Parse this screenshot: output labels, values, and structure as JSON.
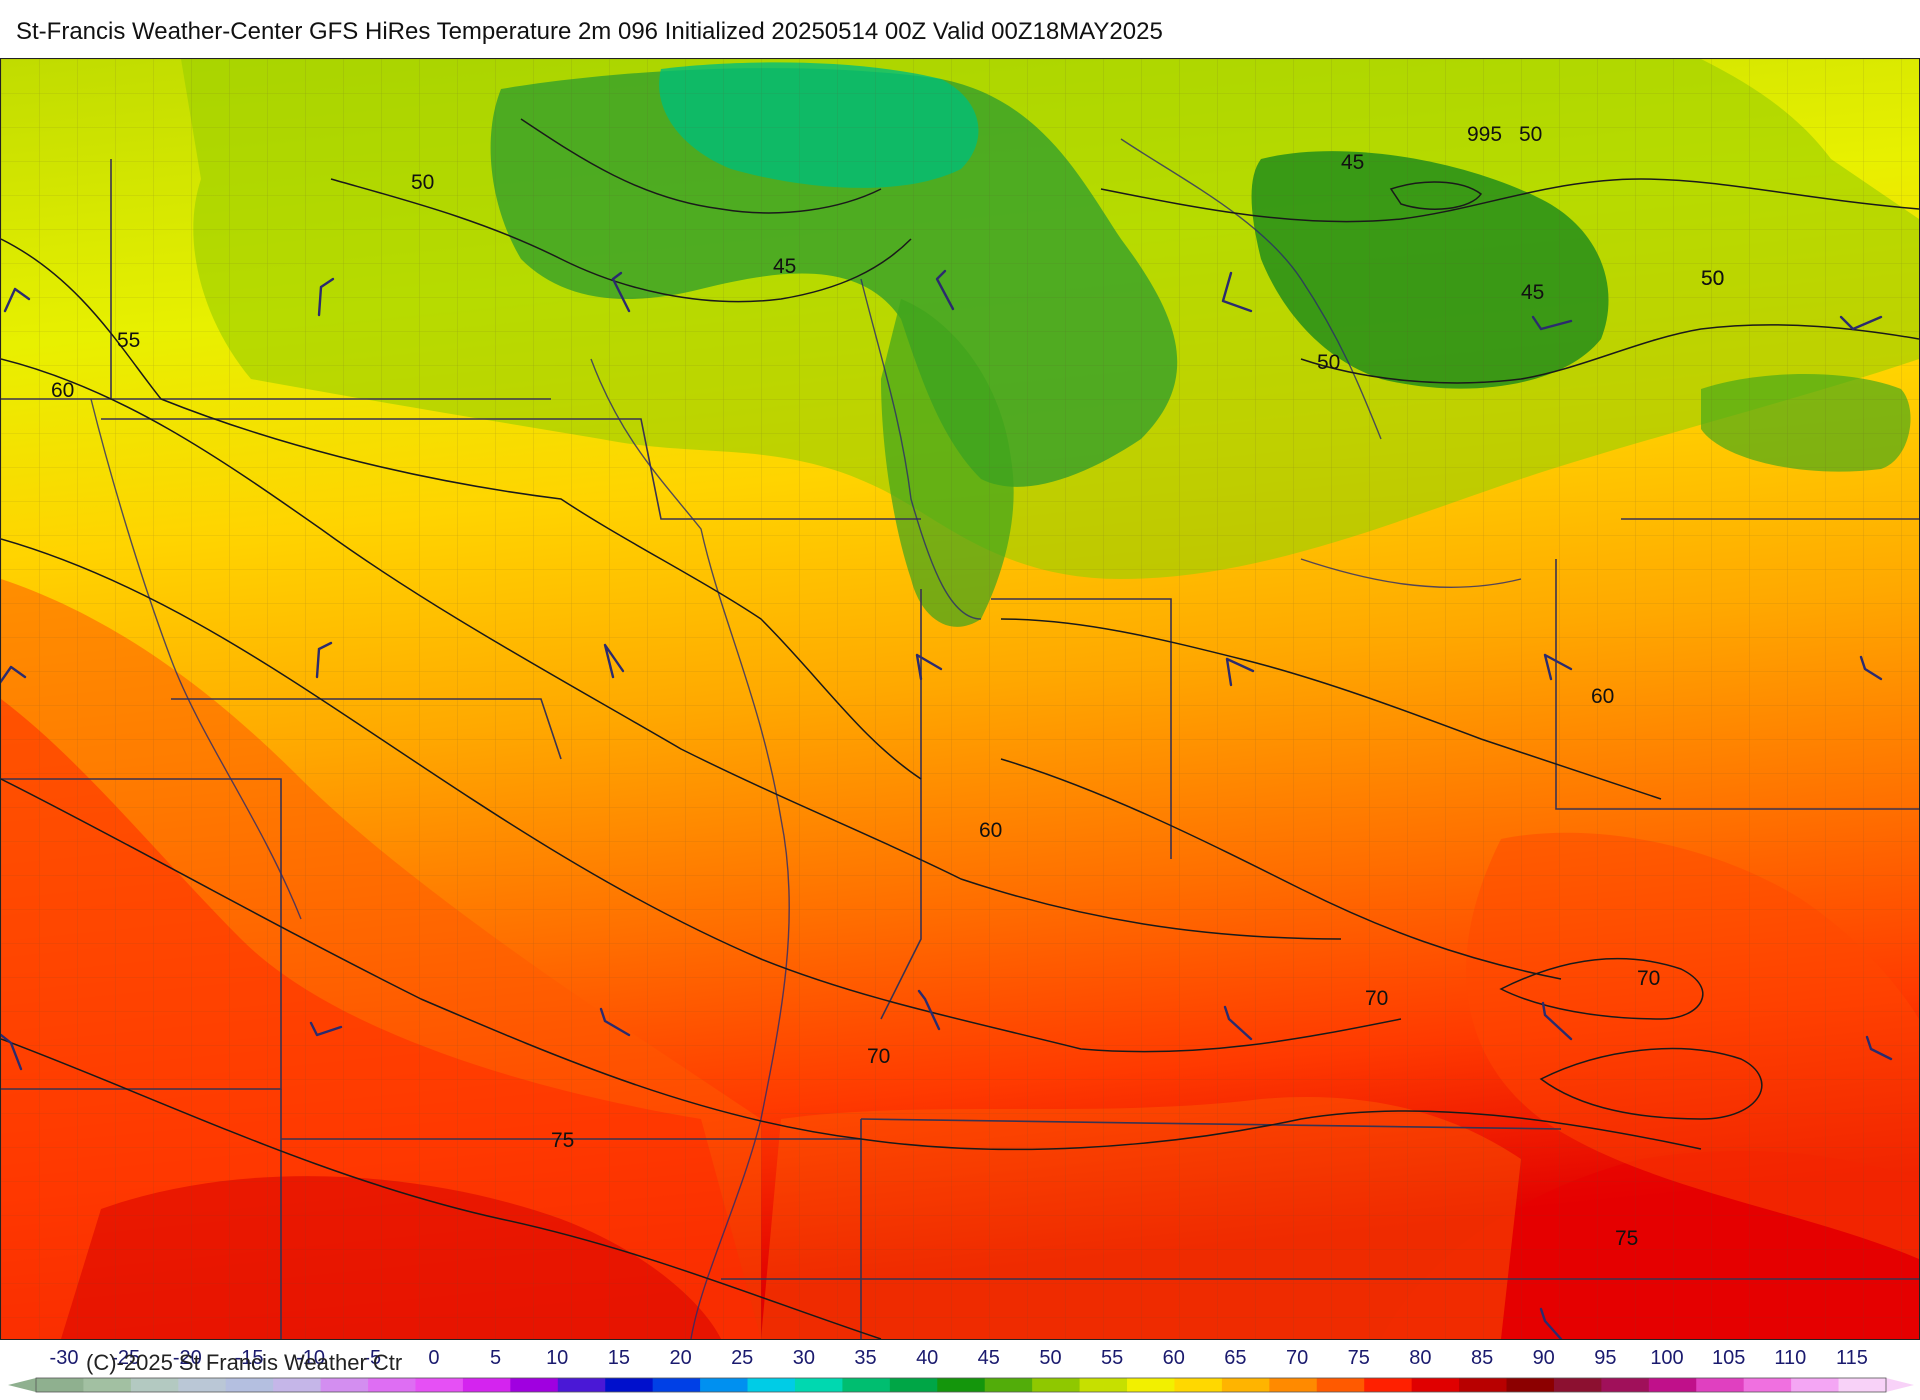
{
  "title": "St-Francis Weather-Center GFS HiRes Temperature 2m  096 Initialized 20250514 00Z Valid 00Z18MAY2025",
  "copyright": "(C)-2025 St Francis Weather Ctr",
  "contour_labels": [
    "50",
    "45",
    "55",
    "60",
    "50",
    "45",
    "995",
    "50",
    "50",
    "45",
    "50",
    "60",
    "60",
    "70",
    "70",
    "70",
    "75",
    "75"
  ],
  "colorbar": {
    "ticks": [
      "-30",
      "-25",
      "-20",
      "-15",
      "-10",
      "-5",
      "0",
      "5",
      "10",
      "15",
      "20",
      "25",
      "30",
      "35",
      "40",
      "45",
      "50",
      "55",
      "60",
      "65",
      "70",
      "75",
      "80",
      "85",
      "90",
      "95",
      "100",
      "105",
      "110",
      "115"
    ],
    "colors": [
      "#8fb08f",
      "#a2c0a2",
      "#b3c9c1",
      "#bac7d6",
      "#b4bfe0",
      "#c5b6e8",
      "#d38ef0",
      "#de6ef3",
      "#e650f5",
      "#d424ef",
      "#a000e0",
      "#4a18d6",
      "#0010cc",
      "#0040e6",
      "#0090f0",
      "#00cce6",
      "#00d8b0",
      "#00be70",
      "#00a646",
      "#14960c",
      "#52ad0a",
      "#8fc800",
      "#c6e000",
      "#f2f000",
      "#ffd800",
      "#ffb400",
      "#ff8a00",
      "#ff5a00",
      "#ff2000",
      "#e00000",
      "#b80000",
      "#8c0000",
      "#8c1030",
      "#a0105a",
      "#c0108a",
      "#e040c0",
      "#f070e0",
      "#f4a6f4",
      "#f8d2f8"
    ]
  }
}
